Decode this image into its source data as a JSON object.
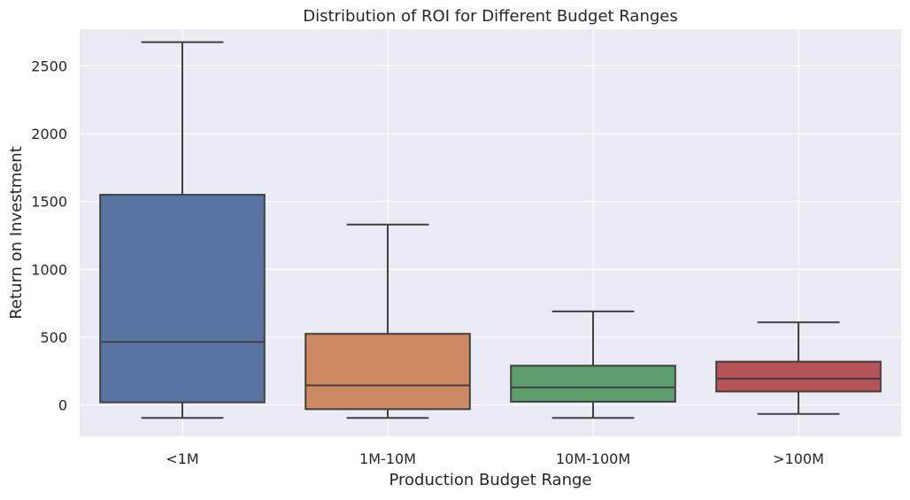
{
  "chart_data": {
    "type": "box",
    "title": "Distribution of ROI for Different Budget Ranges",
    "xlabel": "Production Budget Range",
    "ylabel": "Return on Investment",
    "ylim": [
      -230,
      2770
    ],
    "yticks": [
      0,
      500,
      1000,
      1500,
      2000,
      2500
    ],
    "grid": true,
    "background": "#EAEAF2",
    "gridColor": "#FFFFFF",
    "lineColor": "#404040",
    "categories": [
      "<1M",
      "1M-10M",
      "10M-100M",
      ">100M"
    ],
    "boxes": [
      {
        "category": "<1M",
        "whislo": -95,
        "q1": 20,
        "med": 465,
        "q3": 1550,
        "whishi": 2675,
        "color": "#5874A3"
      },
      {
        "category": "1M-10M",
        "whislo": -95,
        "q1": -30,
        "med": 145,
        "q3": 525,
        "whishi": 1330,
        "color": "#CD8A62"
      },
      {
        "category": "10M-100M",
        "whislo": -95,
        "q1": 25,
        "med": 130,
        "q3": 290,
        "whishi": 690,
        "color": "#5D9E6D"
      },
      {
        "category": ">100M",
        "whislo": -65,
        "q1": 100,
        "med": 195,
        "q3": 320,
        "whishi": 610,
        "color": "#B85457"
      }
    ]
  }
}
